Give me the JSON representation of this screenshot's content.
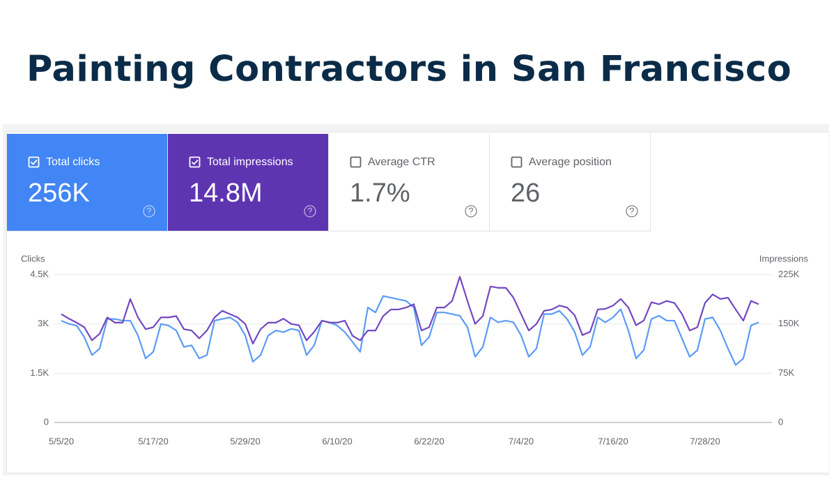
{
  "header": {
    "title": "Painting Contractors in San Francisco"
  },
  "cards": [
    {
      "label": "Total clicks",
      "value": "256K",
      "checked": true,
      "color": "#4285f4"
    },
    {
      "label": "Total impressions",
      "value": "14.8M",
      "checked": true,
      "color": "#5e35b1"
    },
    {
      "label": "Average CTR",
      "value": "1.7%",
      "checked": false,
      "color": "#ffffff"
    },
    {
      "label": "Average position",
      "value": "26",
      "checked": false,
      "color": "#ffffff"
    }
  ],
  "chart_data": {
    "type": "line",
    "y_label": "Clicks",
    "y2_label": "Impressions",
    "categories": [
      "5/5/20",
      null,
      null,
      null,
      null,
      null,
      null,
      null,
      null,
      null,
      null,
      null,
      "5/17/20",
      null,
      null,
      null,
      null,
      null,
      null,
      null,
      null,
      null,
      null,
      null,
      "5/29/20",
      null,
      null,
      null,
      null,
      null,
      null,
      null,
      null,
      null,
      null,
      null,
      "6/10/20",
      null,
      null,
      null,
      null,
      null,
      null,
      null,
      null,
      null,
      null,
      null,
      "6/22/20",
      null,
      null,
      null,
      null,
      null,
      null,
      null,
      null,
      null,
      null,
      null,
      "7/4/20",
      null,
      null,
      null,
      null,
      null,
      null,
      null,
      null,
      null,
      null,
      null,
      "7/16/20",
      null,
      null,
      null,
      null,
      null,
      null,
      null,
      null,
      null,
      null,
      null,
      "7/28/20",
      null,
      null,
      null,
      null,
      null,
      null,
      null
    ],
    "series": [
      {
        "name": "Clicks",
        "color": "#5a9bf6",
        "axis": "y",
        "values": [
          3100,
          3000,
          2950,
          2600,
          2050,
          2250,
          3150,
          3150,
          3100,
          3100,
          2650,
          1950,
          2150,
          3000,
          2950,
          2800,
          2300,
          2350,
          1950,
          2050,
          3100,
          3150,
          3200,
          3050,
          2650,
          1850,
          2050,
          2650,
          2800,
          2750,
          2850,
          2800,
          2050,
          2350,
          3100,
          3050,
          2950,
          2750,
          2450,
          2150,
          3500,
          3350,
          3850,
          3800,
          3750,
          3700,
          3500,
          2350,
          2600,
          3350,
          3350,
          3300,
          3250,
          2900,
          2000,
          2300,
          3200,
          3050,
          3100,
          3050,
          2650,
          2000,
          2250,
          3300,
          3300,
          3400,
          3150,
          2750,
          2050,
          2300,
          3200,
          3050,
          3200,
          3450,
          2800,
          1950,
          2200,
          3150,
          3250,
          3100,
          3100,
          2550,
          2000,
          2200,
          3150,
          3200,
          2800,
          2250,
          1750,
          1950,
          2950,
          3050
        ]
      },
      {
        "name": "Impressions",
        "color": "#7248c0",
        "axis": "y2",
        "values": [
          165000,
          158000,
          152000,
          145000,
          125000,
          135000,
          160000,
          152000,
          152000,
          188000,
          160000,
          142000,
          145000,
          160000,
          160000,
          162000,
          142000,
          140000,
          128000,
          140000,
          160000,
          170000,
          165000,
          160000,
          150000,
          120000,
          142000,
          152000,
          152000,
          158000,
          150000,
          148000,
          125000,
          138000,
          155000,
          152000,
          152000,
          155000,
          132000,
          125000,
          140000,
          140000,
          162000,
          172000,
          172000,
          175000,
          180000,
          140000,
          145000,
          175000,
          175000,
          185000,
          222000,
          185000,
          150000,
          162000,
          207000,
          205000,
          205000,
          190000,
          165000,
          140000,
          150000,
          170000,
          172000,
          178000,
          175000,
          163000,
          133000,
          138000,
          172000,
          173000,
          178000,
          188000,
          175000,
          148000,
          155000,
          183000,
          180000,
          185000,
          182000,
          165000,
          140000,
          145000,
          182000,
          195000,
          188000,
          190000,
          172000,
          155000,
          185000,
          180000
        ]
      }
    ],
    "ylim": [
      0,
      4500
    ],
    "yticks": [
      0,
      {
        "value": 1500,
        "label": "1.5K"
      },
      {
        "value": 3000,
        "label": "3K"
      },
      {
        "value": 4500,
        "label": "4.5K"
      }
    ],
    "y2lim": [
      0,
      225000
    ],
    "y2ticks": [
      0,
      {
        "value": 75000,
        "label": "75K"
      },
      {
        "value": 150000,
        "label": "150K"
      },
      {
        "value": 225000,
        "label": "225K"
      }
    ],
    "grid": true
  }
}
